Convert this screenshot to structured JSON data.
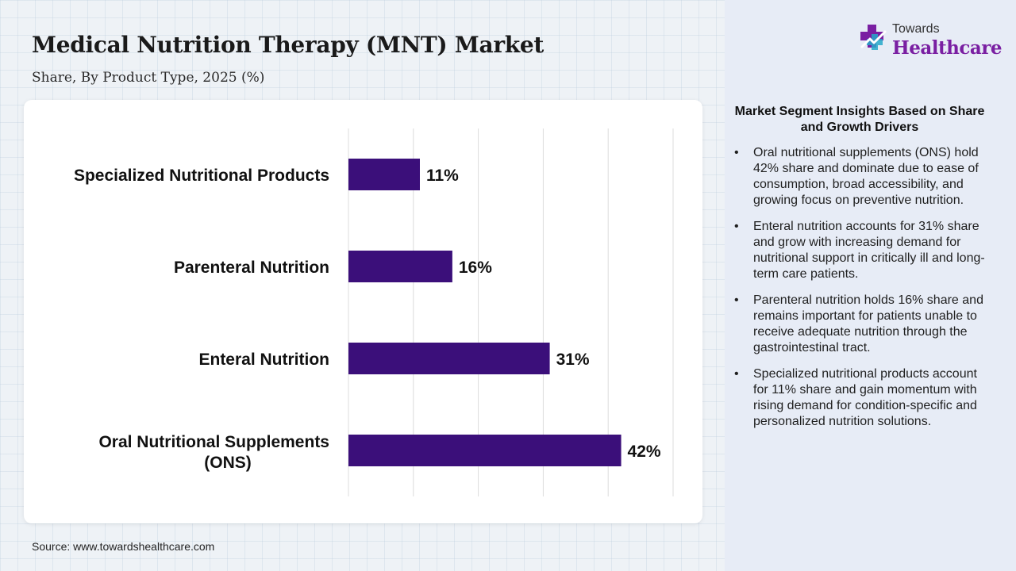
{
  "header": {
    "title": "Medical Nutrition Therapy (MNT) Market",
    "subtitle": "Share, By Product Type, 2025 (%)"
  },
  "logo": {
    "small": "Towards",
    "big": "Healthcare",
    "icon": "medical-cross-logo-icon"
  },
  "source": "Source: www.towardshealthcare.com",
  "colors": {
    "bar": "#3b0f7a",
    "logo_accent": "#7a1fa2",
    "panel": "#e7ecf6"
  },
  "chart_data": {
    "type": "bar",
    "orientation": "horizontal",
    "categories": [
      "Specialized Nutritional Products",
      "Parenteral Nutrition",
      "Enteral Nutrition",
      "Oral Nutritional Supplements (ONS)"
    ],
    "values": [
      11,
      16,
      31,
      42
    ],
    "value_labels": [
      "11%",
      "16%",
      "31%",
      "42%"
    ],
    "xlim": [
      0,
      50
    ],
    "grid": true,
    "title": "Medical Nutrition Therapy (MNT) Market",
    "subtitle": "Share, By Product Type, 2025 (%)"
  },
  "insights": {
    "title": "Market Segment Insights Based on Share and Growth Drivers",
    "items": [
      "Oral nutritional supplements (ONS) hold 42% share and dominate due to ease of consumption, broad accessibility, and growing focus on preventive nutrition.",
      "Enteral nutrition accounts for 31% share and grow with increasing demand for nutritional support in critically ill and long-term care patients.",
      "Parenteral nutrition holds 16% share and remains important for patients unable to receive adequate nutrition through the gastrointestinal tract.",
      "Specialized nutritional products account for 11% share and gain momentum with rising demand for condition-specific and personalized nutrition solutions."
    ]
  }
}
